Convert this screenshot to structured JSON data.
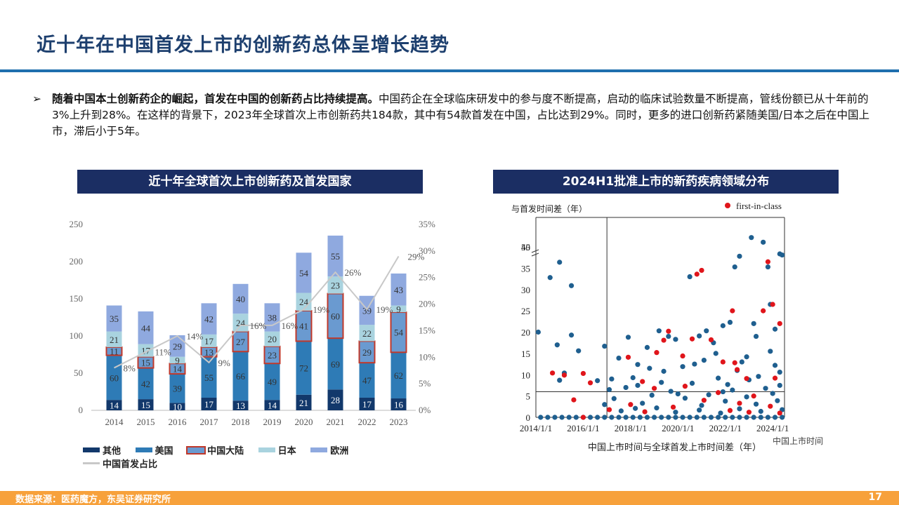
{
  "page": {
    "title": "近十年在中国首发上市的创新药总体呈增长趋势",
    "bullet_bold": "随着中国本土创新药企的崛起，首发在中国的创新药占比持续提高。",
    "bullet_rest": "中国药企在全球临床研发中的参与度不断提高，启动的临床试验数量不断提高，管线份额已从十年前的3%上升到28%。在这样的背景下，2023年全球首次上市创新药共184款，其中有54款首发在中国，占比达到29%。同时，更多的进口创新药紧随美国/日本之后在中国上市，滞后小于5年。",
    "arrow": "➢",
    "footer_source": "数据来源：医药魔方，东吴证券研究所",
    "page_number": "17"
  },
  "chart_data": [
    {
      "type": "bar",
      "title": "近十年全球首次上市创新药及首发国家",
      "categories": [
        "2014",
        "2015",
        "2016",
        "2017",
        "2018",
        "2019",
        "2020",
        "2021",
        "2022",
        "2023"
      ],
      "stacked": true,
      "ylim": [
        0,
        250
      ],
      "yticks": [
        "0",
        "50",
        "100",
        "150",
        "200",
        "250"
      ],
      "y2lim": [
        0,
        35
      ],
      "y2ticks": [
        "0%",
        "5%",
        "10%",
        "15%",
        "20%",
        "25%",
        "30%",
        "35%"
      ],
      "series": [
        {
          "name": "其他",
          "color": "#12386b",
          "values": [
            14,
            15,
            10,
            17,
            13,
            14,
            21,
            28,
            17,
            16
          ]
        },
        {
          "name": "美国",
          "color": "#2e7bb6",
          "values": [
            60,
            42,
            39,
            55,
            66,
            49,
            72,
            69,
            47,
            62
          ]
        },
        {
          "name": "中国大陆",
          "color": "#6a9ad0",
          "border": "#c0392b",
          "values": [
            11,
            15,
            14,
            13,
            27,
            23,
            41,
            60,
            29,
            54
          ]
        },
        {
          "name": "日本",
          "color": "#a9d3df",
          "values": [
            21,
            17,
            9,
            17,
            24,
            20,
            24,
            23,
            22,
            9
          ]
        },
        {
          "name": "欧洲",
          "color": "#8fa9df",
          "values": [
            35,
            44,
            29,
            42,
            40,
            38,
            54,
            55,
            39,
            43
          ]
        }
      ],
      "line": {
        "name": "中国首发占比",
        "color": "#c8c8c8",
        "values": [
          8,
          11,
          14,
          9,
          16,
          16,
          19,
          26,
          19,
          29
        ],
        "labels": [
          "8%",
          "11%",
          "14%",
          "9%",
          "16%",
          "16%",
          "19%",
          "26%",
          "19%",
          "29%"
        ]
      }
    },
    {
      "type": "scatter",
      "title": "2024H1批准上市的新药疾病领域分布",
      "ylabel": "与首发时间差（年）",
      "xlabel": "中国上市时间与全球首发上市时间差（年）",
      "x_end_label": "中国上市时间",
      "legend": "first-in-class",
      "xticks": [
        "2014/1/1",
        "2016/1/1",
        "2018/1/1",
        "2020/1/1",
        "2022/1/1",
        "2024/1/1"
      ],
      "yticks": [
        "0",
        "5",
        "10",
        "15",
        "20",
        "25",
        "30",
        "35",
        "40",
        "55"
      ],
      "xlim": [
        2014.0,
        2024.5
      ],
      "ylim": [
        0,
        58
      ],
      "y_break": [
        40,
        55
      ],
      "vline_x": 2017.0,
      "hline_y": 6,
      "colors": {
        "normal": "#1f5f8f",
        "first_in_class": "#e0151b"
      },
      "series": [
        {
          "name": "other",
          "color": "#1f5f8f",
          "points": [
            [
              2014.1,
              20
            ],
            [
              2014.6,
              32.8
            ],
            [
              2015.0,
              36.4
            ],
            [
              2015.5,
              30.9
            ],
            [
              2014.9,
              17
            ],
            [
              2015.5,
              19.3
            ],
            [
              2015.2,
              10.4
            ],
            [
              2015.0,
              8.7
            ],
            [
              2015.8,
              15.6
            ],
            [
              2016.6,
              8.6
            ],
            [
              2016.9,
              16.7
            ],
            [
              2017.5,
              13.9
            ],
            [
              2017.9,
              18.8
            ],
            [
              2018.3,
              12.4
            ],
            [
              2018.7,
              16.4
            ],
            [
              2019.2,
              20.3
            ],
            [
              2019.6,
              19.0
            ],
            [
              2019.9,
              18.3
            ],
            [
              2020.5,
              33.0
            ],
            [
              2020.9,
              19.1
            ],
            [
              2021.2,
              20.3
            ],
            [
              2021.5,
              17.5
            ],
            [
              2021.9,
              21.5
            ],
            [
              2022.2,
              22.3
            ],
            [
              2022.4,
              35.3
            ],
            [
              2022.6,
              53.0
            ],
            [
              2022.7,
              13.0
            ],
            [
              2023.1,
              57.0
            ],
            [
              2023.3,
              19.0
            ],
            [
              2023.6,
              56.0
            ],
            [
              2023.8,
              35.3
            ],
            [
              2023.9,
              26.5
            ],
            [
              2024.1,
              20.7
            ],
            [
              2024.3,
              53.5
            ],
            [
              2024.4,
              38.1
            ],
            [
              2024.3,
              10.6
            ],
            [
              2023.2,
              22.0
            ],
            [
              2022.9,
              14.2
            ],
            [
              2018.1,
              9.3
            ],
            [
              2019.4,
              10.8
            ],
            [
              2020.2,
              11.9
            ],
            [
              2021.1,
              13.4
            ],
            [
              2022.1,
              7.7
            ],
            [
              2023.0,
              8.8
            ],
            [
              2024.0,
              5.6
            ],
            [
              2017.3,
              4.4
            ],
            [
              2017.8,
              7.0
            ],
            [
              2018.5,
              3.3
            ],
            [
              2018.9,
              5.2
            ],
            [
              2019.1,
              2.2
            ],
            [
              2019.7,
              6.1
            ],
            [
              2020.3,
              4.5
            ],
            [
              2020.6,
              8.0
            ],
            [
              2021.0,
              2.8
            ],
            [
              2021.3,
              5.3
            ],
            [
              2021.7,
              9.2
            ],
            [
              2022.0,
              3.8
            ],
            [
              2022.3,
              6.4
            ],
            [
              2022.6,
              2.0
            ],
            [
              2022.9,
              4.8
            ],
            [
              2023.3,
              3.1
            ],
            [
              2023.7,
              6.8
            ],
            [
              2024.2,
              3.9
            ],
            [
              2024.4,
              1.8
            ],
            [
              2017.6,
              1.5
            ],
            [
              2018.2,
              2.1
            ],
            [
              2019.9,
              1.2
            ],
            [
              2020.9,
              1.7
            ],
            [
              2021.8,
              1.0
            ],
            [
              2023.5,
              1.4
            ],
            [
              2014.2,
              0
            ],
            [
              2014.5,
              0
            ],
            [
              2014.8,
              0
            ],
            [
              2015.1,
              0
            ],
            [
              2015.4,
              0
            ],
            [
              2015.7,
              0
            ],
            [
              2016.0,
              0
            ],
            [
              2016.3,
              0
            ],
            [
              2016.6,
              0
            ],
            [
              2016.9,
              0
            ],
            [
              2017.2,
              0
            ],
            [
              2017.5,
              0
            ],
            [
              2017.8,
              0
            ],
            [
              2018.1,
              0
            ],
            [
              2018.4,
              0
            ],
            [
              2018.7,
              0
            ],
            [
              2019.0,
              0
            ],
            [
              2019.3,
              0
            ],
            [
              2019.6,
              0
            ],
            [
              2019.9,
              0
            ],
            [
              2020.2,
              0
            ],
            [
              2020.5,
              0
            ],
            [
              2020.8,
              0
            ],
            [
              2021.1,
              0
            ],
            [
              2021.4,
              0
            ],
            [
              2021.7,
              0
            ],
            [
              2022.0,
              0
            ],
            [
              2022.3,
              0
            ],
            [
              2022.6,
              0
            ],
            [
              2022.9,
              0
            ],
            [
              2023.2,
              0
            ],
            [
              2023.5,
              0
            ],
            [
              2023.8,
              0
            ],
            [
              2024.1,
              0
            ],
            [
              2024.4,
              0
            ],
            [
              2016.9,
              3.0
            ],
            [
              2017.1,
              6.5
            ],
            [
              2018.8,
              11.5
            ],
            [
              2020.7,
              12.5
            ],
            [
              2021.6,
              15.0
            ],
            [
              2023.9,
              15.5
            ],
            [
              2024.1,
              12.2
            ],
            [
              2023.4,
              9.6
            ],
            [
              2022.5,
              11.0
            ],
            [
              2019.3,
              8.2
            ],
            [
              2018.3,
              7.5
            ],
            [
              2017.2,
              9.0
            ],
            [
              2024.3,
              7.5
            ],
            [
              2021.9,
              6.0
            ],
            [
              2020.0,
              5.5
            ]
          ]
        },
        {
          "name": "first-in-class",
          "color": "#e0151b",
          "points": [
            [
              2014.7,
              10.4
            ],
            [
              2015.2,
              9.9
            ],
            [
              2016.0,
              10.3
            ],
            [
              2016.3,
              8.1
            ],
            [
              2015.6,
              4.1
            ],
            [
              2017.9,
              14.1
            ],
            [
              2018.5,
              8.4
            ],
            [
              2019.1,
              15.2
            ],
            [
              2019.4,
              18.1
            ],
            [
              2019.6,
              20.2
            ],
            [
              2020.2,
              14.4
            ],
            [
              2020.6,
              18.4
            ],
            [
              2020.8,
              33.6
            ],
            [
              2021.0,
              34.5
            ],
            [
              2021.4,
              18.2
            ],
            [
              2021.9,
              13.0
            ],
            [
              2022.3,
              25.0
            ],
            [
              2022.4,
              12.8
            ],
            [
              2022.5,
              11.2
            ],
            [
              2022.9,
              9.1
            ],
            [
              2023.6,
              25.0
            ],
            [
              2023.8,
              36.5
            ],
            [
              2024.0,
              26.5
            ],
            [
              2024.3,
              22.0
            ],
            [
              2024.1,
              9.2
            ],
            [
              2017.1,
              1.8
            ],
            [
              2018.0,
              3.0
            ],
            [
              2019.0,
              6.8
            ],
            [
              2019.8,
              2.4
            ],
            [
              2020.3,
              7.3
            ],
            [
              2021.1,
              4.0
            ],
            [
              2021.7,
              5.8
            ],
            [
              2022.2,
              1.6
            ],
            [
              2022.6,
              3.3
            ],
            [
              2023.0,
              1.2
            ],
            [
              2023.2,
              5.0
            ],
            [
              2023.9,
              2.6
            ],
            [
              2024.3,
              1.0
            ],
            [
              2016.0,
              0
            ],
            [
              2018.6,
              1.3
            ]
          ]
        }
      ]
    }
  ]
}
